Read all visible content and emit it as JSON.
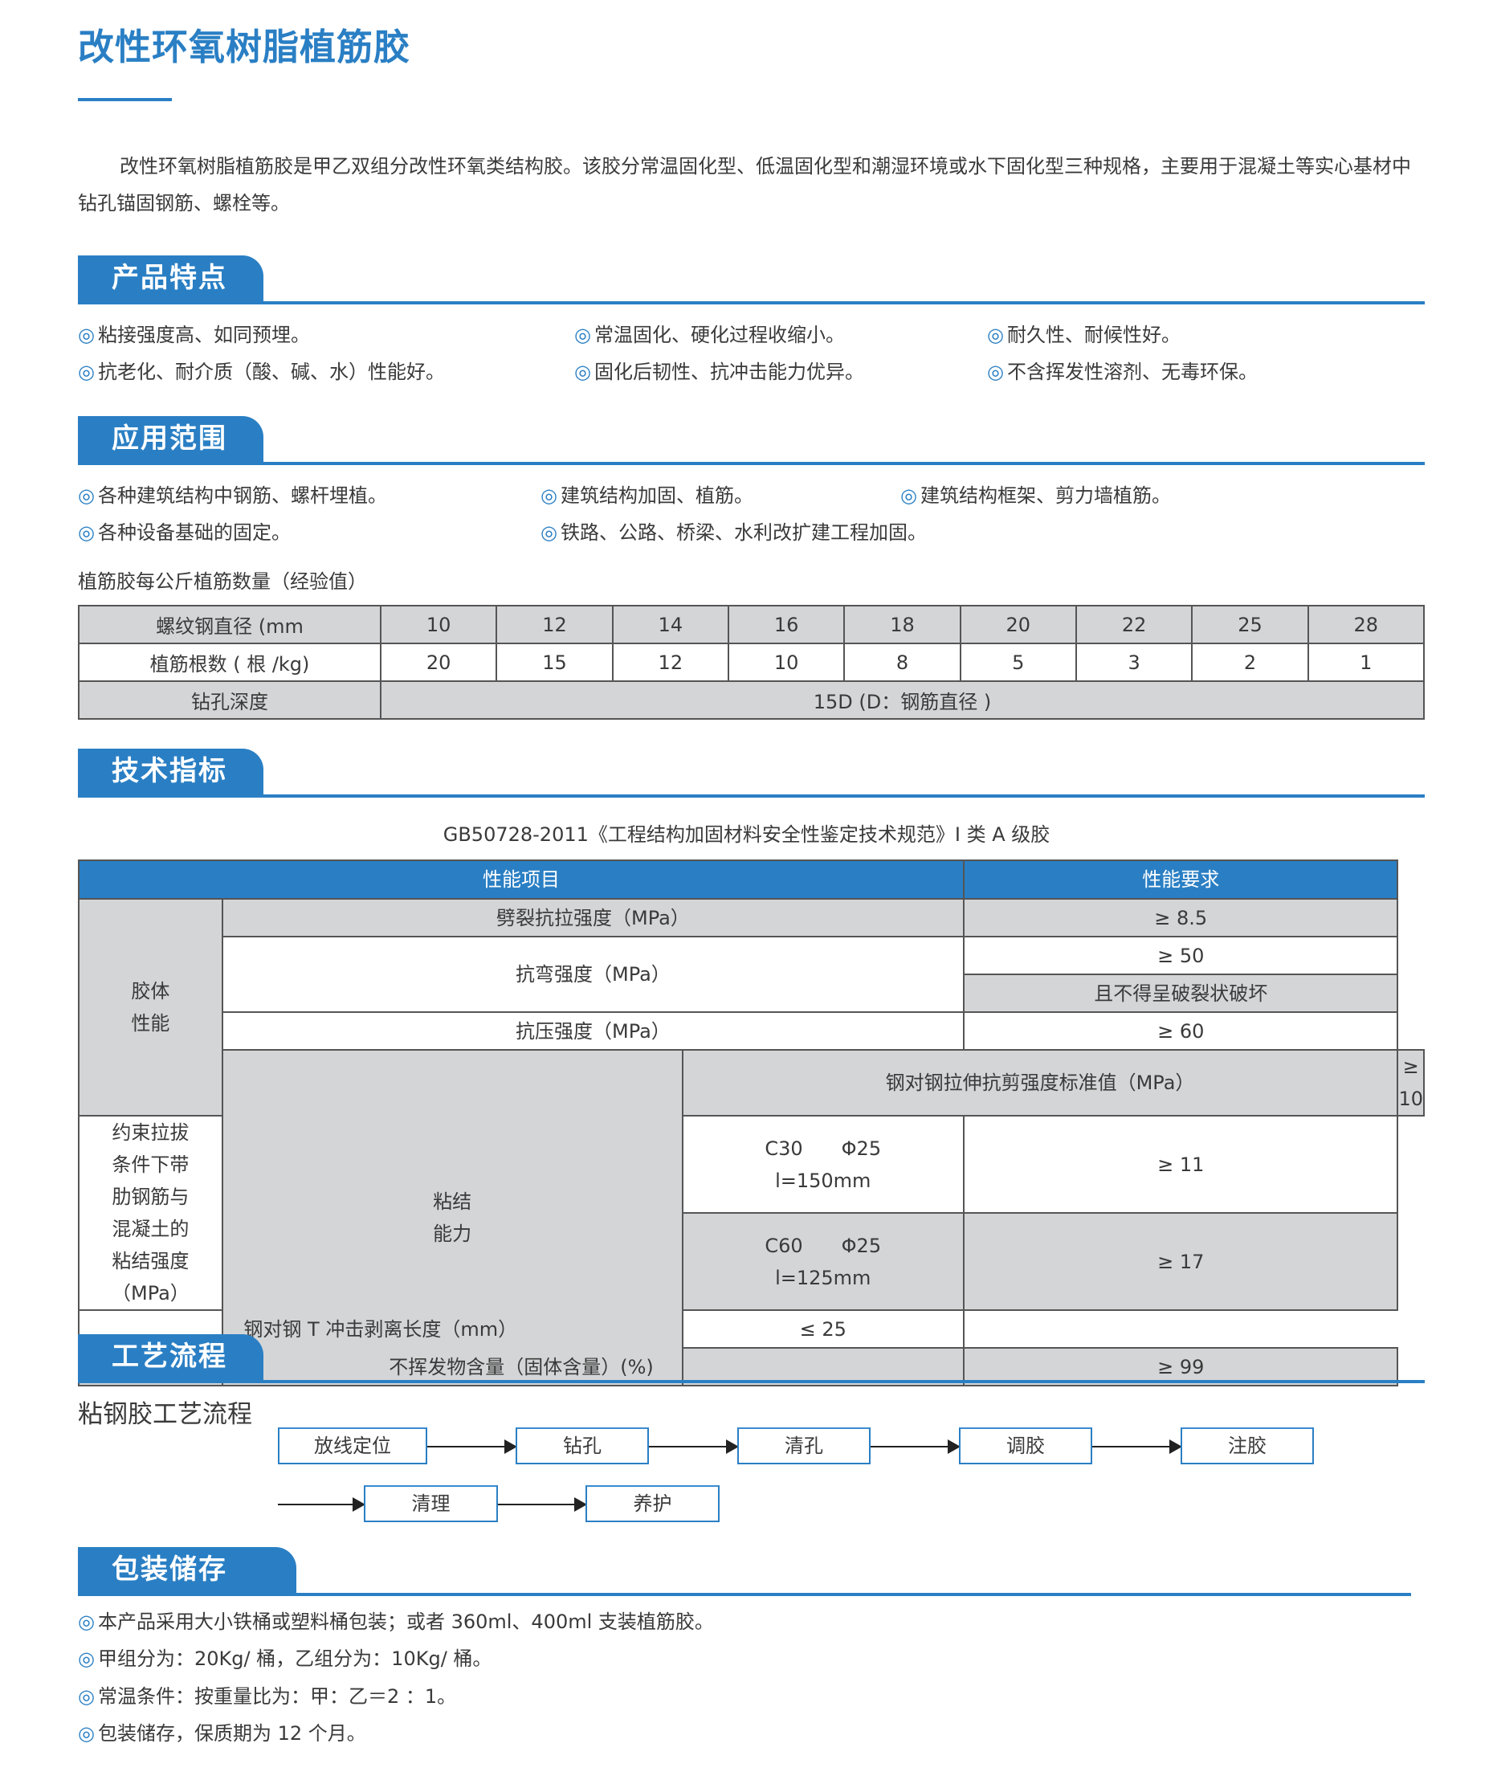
{
  "title": "改性环氧树脂植筋胶",
  "intro": "改性环氧树脂植筋胶是甲乙双组分改性环氧类结构胶。该胶分常温固化型、低温固化型和潮湿环境或水下固化型三种规格，主要用于混凝土等实心基材中钻孔锚固钢筋、螺栓等。",
  "bullet": "◎",
  "colors": {
    "accent": "#2a7fc4",
    "table_gray": "#d4d5d7"
  },
  "features": {
    "heading": "产品特点",
    "items": [
      "粘接强度高、如同预埋。",
      "常温固化、硬化过程收缩小。",
      "耐久性、耐候性好。",
      "抗老化、耐介质（酸、碱、水）性能好。",
      "固化后韧性、抗冲击能力优异。",
      "不含挥发性溶剂、无毒环保。"
    ]
  },
  "applications": {
    "heading": "应用范围",
    "items": [
      "各种建筑结构中钢筋、螺杆埋植。",
      "建筑结构加固、植筋。",
      "建筑结构框架、剪力墙植筋。",
      "各种设备基础的固定。",
      "铁路、公路、桥梁、水利改扩建工程加固。"
    ]
  },
  "rebar_table": {
    "caption": "植筋胶每公斤植筋数量（经验值）",
    "row_labels": [
      "螺纹钢直径 (mm",
      "植筋根数 ( 根 /kg)",
      "钻孔深度"
    ],
    "diameters": [
      "10",
      "12",
      "14",
      "16",
      "18",
      "20",
      "22",
      "25",
      "28"
    ],
    "counts": [
      "20",
      "15",
      "12",
      "10",
      "8",
      "5",
      "3",
      "2",
      "1"
    ],
    "depth": "15D (D：钢筋直径 )"
  },
  "specs": {
    "heading": "技术指标",
    "caption": "GB50728-2011《工程结构加固材料安全性鉴定技术规范》I 类 A 级胶",
    "col_item": "性能项目",
    "col_req": "性能要求",
    "group1": "胶体\n性能",
    "group2": "粘结\n能力",
    "r1": "劈裂抗拉强度（MPa）",
    "r1v": "≥ 8.5",
    "r2": "抗弯强度（MPa）",
    "r2v": "≥ 50",
    "r2v2": "且不得呈破裂状破坏",
    "r3": "抗压强度（MPa）",
    "r3v": "≥ 60",
    "r4": "钢对钢拉伸抗剪强度标准值（MPa）",
    "r4v": "≥ 10",
    "r5": "约束拉拔条件下带肋钢筋与混凝土的粘结强度（MPa）",
    "r5a": "C30　　Φ25\nl=150mm",
    "r5av": "≥ 11",
    "r5b": "C60　　Φ25\nl=125mm",
    "r5bv": "≥ 17",
    "r6": "钢对钢 T 冲击剥离长度（mm）",
    "r6v": "≤ 25",
    "r7": "不挥发物含量（固体含量）(%)",
    "r7v": "≥ 99"
  },
  "process": {
    "heading": "工艺流程",
    "label": "粘钢胶工艺流程",
    "steps": [
      "放线定位",
      "钻孔",
      "清孔",
      "调胶",
      "注胶",
      "清理",
      "养护"
    ]
  },
  "packaging": {
    "heading": "包装储存",
    "items": [
      "本产品采用大小铁桶或塑料桶包装；或者 360ml、400ml 支装植筋胶。",
      "甲组分为：20Kg/ 桶，乙组分为：10Kg/ 桶。",
      "常温条件：按重量比为：甲：乙＝2 ：1。",
      "包装储存，保质期为 12 个月。"
    ]
  }
}
